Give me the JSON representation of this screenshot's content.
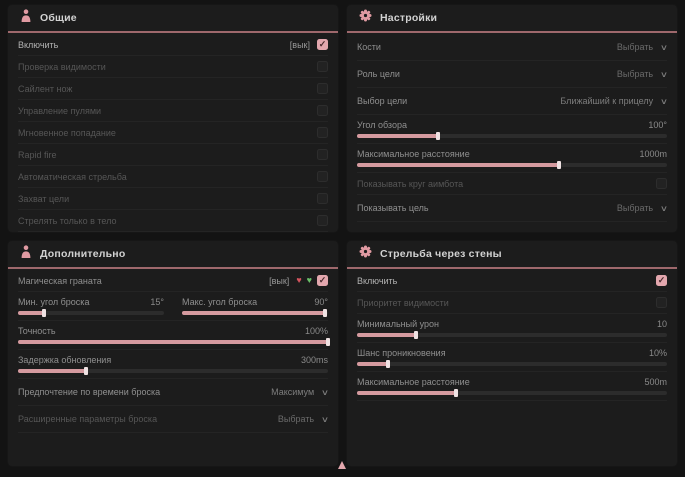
{
  "general": {
    "title": "Общие",
    "enable": {
      "label": "Включить",
      "state": "[вык]"
    },
    "options": [
      "Проверка видимости",
      "Сайлент нож",
      "Управление пулями",
      "Мгновенное попадание",
      "Rapid fire",
      "Автоматическая стрельба",
      "Захват цели",
      "Стрелять только в тело"
    ]
  },
  "settings": {
    "title": "Настройки",
    "bones": {
      "label": "Кости",
      "value": "Выбрать"
    },
    "target_role": {
      "label": "Роль цели",
      "value": "Выбрать"
    },
    "target_select": {
      "label": "Выбор цели",
      "value": "Ближайший к прицелу"
    },
    "fov": {
      "label": "Угол обзора",
      "value": "100°",
      "pct": 26
    },
    "max_distance": {
      "label": "Максимальное расстояние",
      "value": "1000m",
      "pct": 65
    },
    "show_circle": {
      "label": "Показывать круг аимбота"
    },
    "show_target": {
      "label": "Показывать цель",
      "value": "Выбрать"
    }
  },
  "additional": {
    "title": "Дополнительно",
    "magic_grenade": {
      "label": "Магическая граната",
      "state": "[вык]"
    },
    "min_angle": {
      "label": "Мин. угол броска",
      "value": "15°",
      "pct": 18
    },
    "max_angle": {
      "label": "Макс. угол броска",
      "value": "90°",
      "pct": 98
    },
    "accuracy": {
      "label": "Точность",
      "value": "100%",
      "pct": 100
    },
    "update_delay": {
      "label": "Задержка обновления",
      "value": "300ms",
      "pct": 22
    },
    "throw_time": {
      "label": "Предпочтение по времени броска",
      "value": "Максимум"
    },
    "advanced": {
      "label": "Расширенные параметры броска",
      "value": "Выбрать"
    }
  },
  "walls": {
    "title": "Стрельба через стены",
    "enable": {
      "label": "Включить"
    },
    "visibility_priority": {
      "label": "Приоритет видимости"
    },
    "min_damage": {
      "label": "Минимальный урон",
      "value": "10",
      "pct": 19
    },
    "penetration_chance": {
      "label": "Шанс проникновения",
      "value": "10%",
      "pct": 10
    },
    "max_distance": {
      "label": "Максимальное расстояние",
      "value": "500m",
      "pct": 32
    }
  },
  "colors": {
    "accent": "#d59a9f",
    "header_line": "#9e686c",
    "checkbox_checked": "#e3a7ae",
    "green_icon": "#6abf69",
    "red_icon": "#d4545e",
    "panel_bg": "#1c1c1c",
    "page_bg": "#131313"
  }
}
